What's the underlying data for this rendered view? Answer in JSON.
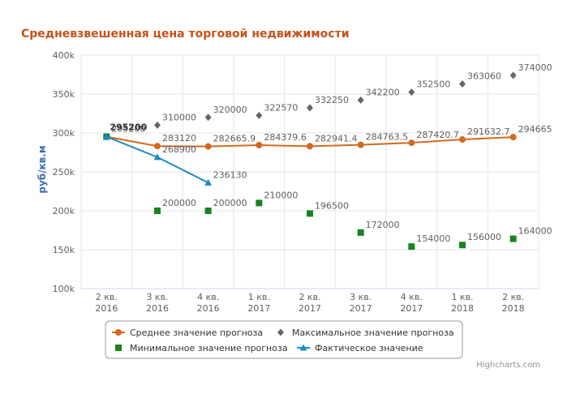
{
  "chart_data": {
    "type": "line",
    "title": "Средневзвешенная цена торговой недвижимости",
    "ylabel": "руб/кв.м",
    "ylim": [
      100000,
      400000
    ],
    "yticks": [
      "100k",
      "150k",
      "200k",
      "250k",
      "300k",
      "350k",
      "400k"
    ],
    "categories": [
      [
        "2 кв.",
        "2016"
      ],
      [
        "3 кв.",
        "2016"
      ],
      [
        "4 кв.",
        "2016"
      ],
      [
        "1 кв.",
        "2017"
      ],
      [
        "2 кв.",
        "2017"
      ],
      [
        "3 кв.",
        "2017"
      ],
      [
        "4 кв.",
        "2017"
      ],
      [
        "1 кв.",
        "2018"
      ],
      [
        "2 кв.",
        "2018"
      ]
    ],
    "grid": true,
    "legend_position": "bottom-center",
    "series": [
      {
        "name": "Среднее значение прогноза",
        "marker": "circle",
        "color": "#d2691e",
        "line": true,
        "values": [
          295200,
          283120,
          282665.9,
          284379.6,
          282941.4,
          284763.5,
          287420.7,
          291632.7,
          294665
        ],
        "labels": [
          "295200",
          "283120",
          "282665.9",
          "284379.6",
          "282941.4",
          "284763.5",
          "287420.7",
          "291632.7",
          "294665"
        ]
      },
      {
        "name": "Максимальное значение прогноза",
        "marker": "diamond",
        "color": "#666666",
        "line": false,
        "values": [
          null,
          310000,
          320000,
          322570,
          332250,
          342200,
          352500,
          363060,
          374000
        ],
        "labels": [
          null,
          "310000",
          "320000",
          "322570",
          "332250",
          "342200",
          "352500",
          "363060",
          "374000"
        ]
      },
      {
        "name": "Минимальное значение прогноза",
        "marker": "square",
        "color": "#18831f",
        "line": false,
        "values": [
          295200,
          200000,
          200000,
          210000,
          196500,
          172000,
          154000,
          156000,
          164000
        ],
        "labels": [
          null,
          "200000",
          "200000",
          "210000",
          "196500",
          "172000",
          "154000",
          "156000",
          "164000"
        ]
      },
      {
        "name": "Фактическое значение",
        "marker": "triangle",
        "color": "#1a8cc4",
        "line": true,
        "values": [
          295200,
          268900,
          236130,
          null,
          null,
          null,
          null,
          null,
          null
        ],
        "labels": [
          null,
          "268900",
          "236130",
          null,
          null,
          null,
          null,
          null,
          null
        ]
      }
    ],
    "credits": "Highcharts.com"
  },
  "colors": {
    "title": "#c8511a",
    "axis_title": "#3e6fb0",
    "grid": "#e6e6e6",
    "tick_text": "#606060",
    "data_label": "#606060"
  }
}
